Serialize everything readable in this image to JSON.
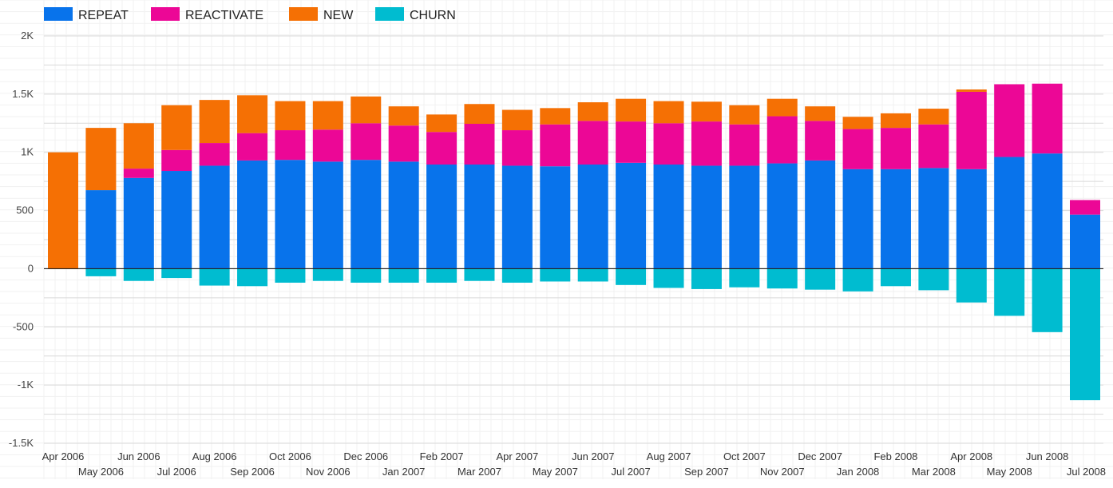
{
  "chart_data": {
    "type": "bar",
    "stacked": true,
    "title": "",
    "xlabel": "",
    "ylabel": "",
    "ylim": [
      -1500,
      2000
    ],
    "yticks": [
      -1500,
      -1000,
      -500,
      0,
      500,
      1000,
      1500,
      2000
    ],
    "ytick_labels": [
      "-1.5K",
      "-1K",
      "-500",
      "0",
      "500",
      "1K",
      "1.5K",
      "2K"
    ],
    "grid": true,
    "legend_position": "top-left",
    "categories": [
      "Apr 2006",
      "May 2006",
      "Jun 2006",
      "Jul 2006",
      "Aug 2006",
      "Sep 2006",
      "Oct 2006",
      "Nov 2006",
      "Dec 2006",
      "Jan 2007",
      "Feb 2007",
      "Mar 2007",
      "Apr 2007",
      "May 2007",
      "Jun 2007",
      "Jul 2007",
      "Aug 2007",
      "Sep 2007",
      "Oct 2007",
      "Nov 2007",
      "Dec 2007",
      "Jan 2008",
      "Feb 2008",
      "Mar 2008",
      "Apr 2008",
      "May 2008",
      "Jun 2008",
      "Jul 2008"
    ],
    "series": [
      {
        "name": "REPEAT",
        "color": "#0873eb",
        "values": [
          0,
          675,
          780,
          840,
          885,
          930,
          935,
          920,
          935,
          920,
          895,
          895,
          885,
          880,
          895,
          910,
          895,
          885,
          885,
          905,
          930,
          855,
          855,
          865,
          855,
          960,
          990,
          465
        ]
      },
      {
        "name": "REACTIVATE",
        "color": "#ec0796",
        "values": [
          0,
          0,
          80,
          180,
          195,
          235,
          255,
          275,
          315,
          310,
          280,
          350,
          305,
          360,
          375,
          355,
          355,
          380,
          355,
          405,
          340,
          345,
          355,
          375,
          665,
          625,
          600,
          125
        ]
      },
      {
        "name": "NEW",
        "color": "#f57004",
        "values": [
          1000,
          535,
          390,
          385,
          370,
          325,
          250,
          245,
          230,
          165,
          150,
          170,
          175,
          140,
          160,
          195,
          190,
          170,
          165,
          150,
          125,
          105,
          125,
          135,
          20,
          0,
          0,
          0
        ]
      },
      {
        "name": "CHURN",
        "color": "#00bcd0",
        "values": [
          0,
          -65,
          -105,
          -80,
          -145,
          -150,
          -120,
          -105,
          -120,
          -120,
          -120,
          -105,
          -120,
          -110,
          -110,
          -140,
          -165,
          -175,
          -160,
          -170,
          -180,
          -195,
          -150,
          -185,
          -290,
          -405,
          -545,
          -1130
        ]
      }
    ]
  }
}
